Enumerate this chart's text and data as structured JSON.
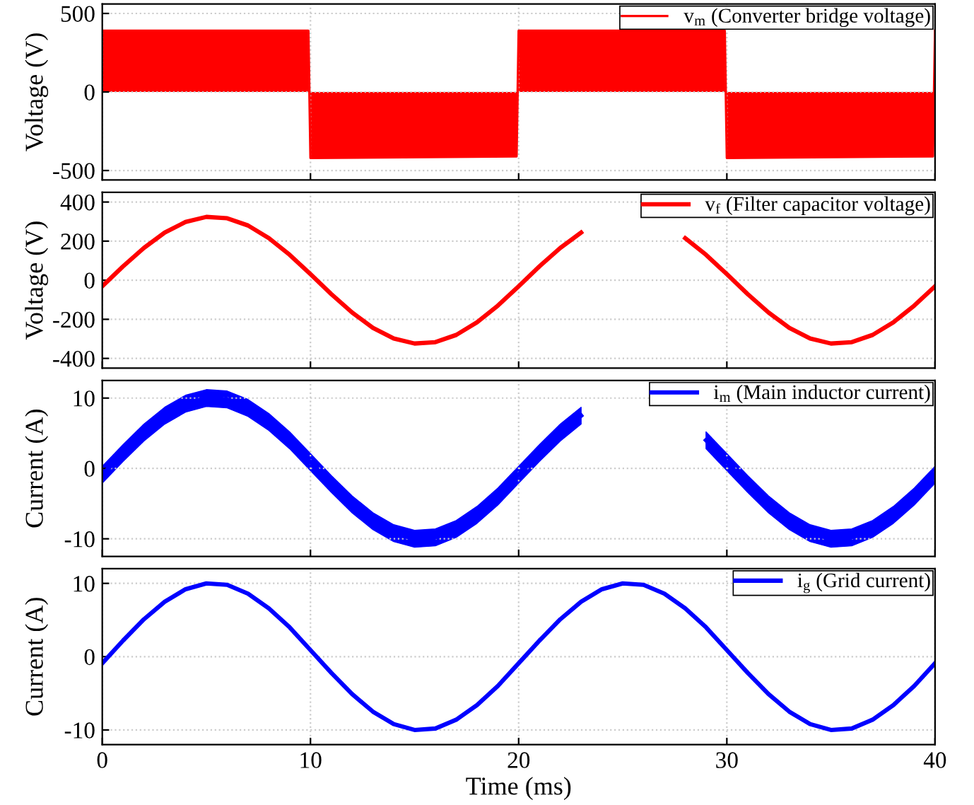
{
  "chart_data": [
    {
      "type": "area",
      "ylabel": "Voltage (V)",
      "xlim": [
        0,
        40
      ],
      "xticks": [
        0,
        10,
        20,
        30,
        40
      ],
      "ylim": [
        -560,
        560
      ],
      "yticks": [
        -500,
        0,
        500
      ],
      "grid": true,
      "legend": "top right",
      "tick_labels": "y",
      "series": [
        {
          "name": "v$_{m}$ (Converter bridge voltage)",
          "color": "#ff0000",
          "x": [
            0,
            9.9,
            10,
            19.9,
            20,
            29.9,
            30,
            39.9,
            40
          ],
          "values": [
            390,
            390,
            -420,
            -410,
            390,
            390,
            -420,
            -410,
            390
          ]
        }
      ]
    },
    {
      "type": "line",
      "ylabel": "Voltage (V)",
      "xlim": [
        0,
        40
      ],
      "xticks": [
        0,
        10,
        20,
        30,
        40
      ],
      "ylim": [
        -450,
        450
      ],
      "yticks": [
        -400,
        -200,
        0,
        200,
        400
      ],
      "grid": true,
      "legend": "top right",
      "tick_labels": "y",
      "series": [
        {
          "name": "v$_{f}$ (Filter capacitor voltage)",
          "color": "#ff0000",
          "x": [
            0,
            1,
            2,
            3,
            4,
            5,
            6,
            7,
            8,
            9,
            10,
            11,
            12,
            13,
            14,
            15,
            16,
            17,
            18,
            19,
            20,
            21,
            22,
            23,
            24,
            25,
            26,
            27,
            28,
            29,
            30,
            31,
            32,
            33,
            34,
            35,
            36,
            37,
            38,
            39,
            40
          ],
          "values": [
            -31,
            71,
            165,
            244,
            298,
            324,
            317,
            280,
            215,
            130,
            31,
            -71,
            -165,
            -244,
            -298,
            -324,
            -317,
            -280,
            -215,
            -130,
            -31,
            71,
            165,
            244,
            null,
            null,
            null,
            null,
            215,
            130,
            31,
            -71,
            -165,
            -244,
            -298,
            -324,
            -317,
            -280,
            -215,
            -130,
            -31
          ]
        }
      ]
    },
    {
      "type": "line",
      "ylabel": "Current (A)",
      "xlim": [
        0,
        40
      ],
      "xticks": [
        0,
        10,
        20,
        30,
        40
      ],
      "ylim": [
        -12.5,
        12.5
      ],
      "yticks": [
        -10,
        0,
        10
      ],
      "grid": true,
      "legend": "top right",
      "tick_labels": "y",
      "series": [
        {
          "name": "i$_{m}$ (Main inductor current)",
          "color": "#0000ff",
          "x": [
            0,
            1,
            2,
            3,
            4,
            5,
            6,
            7,
            8,
            9,
            10,
            11,
            12,
            13,
            14,
            15,
            16,
            17,
            18,
            19,
            20,
            21,
            22,
            23,
            24,
            25,
            26,
            27,
            28,
            29,
            30,
            31,
            32,
            33,
            34,
            35,
            36,
            37,
            38,
            39,
            40
          ],
          "values": [
            -0.9,
            2.2,
            5.1,
            7.5,
            9.2,
            10.0,
            9.8,
            8.6,
            6.6,
            4.0,
            0.9,
            -2.2,
            -5.1,
            -7.5,
            -9.2,
            -10.0,
            -9.8,
            -8.6,
            -6.6,
            -4.0,
            -0.9,
            2.2,
            5.1,
            7.5,
            null,
            null,
            null,
            null,
            null,
            4.0,
            0.9,
            -2.2,
            -5.1,
            -7.5,
            -9.2,
            -10.0,
            -9.8,
            -8.6,
            -6.6,
            -4.0,
            -0.9
          ],
          "lower": [
            -2.1,
            1.0,
            3.9,
            6.3,
            8.0,
            8.8,
            8.6,
            7.4,
            5.4,
            2.8,
            -0.3,
            -3.4,
            -6.3,
            -8.7,
            -10.4,
            -11.2,
            -11.0,
            -9.8,
            -7.8,
            -5.2,
            -2.1,
            1.0,
            3.9,
            6.3,
            null,
            null,
            null,
            null,
            null,
            2.8,
            -0.3,
            -3.4,
            -6.3,
            -8.7,
            -10.4,
            -11.2,
            -11.0,
            -9.8,
            -7.8,
            -5.2,
            -2.1
          ],
          "upper": [
            0.3,
            3.4,
            6.3,
            8.7,
            10.4,
            11.2,
            11.0,
            9.8,
            7.8,
            5.2,
            2.1,
            -1.0,
            -3.9,
            -6.3,
            -8.0,
            -8.8,
            -8.6,
            -7.4,
            -5.4,
            -2.8,
            0.3,
            3.4,
            6.3,
            8.7,
            null,
            null,
            null,
            null,
            null,
            5.2,
            2.1,
            -1.0,
            -3.9,
            -6.3,
            -8.0,
            -8.8,
            -8.6,
            -7.4,
            -5.4,
            -2.8,
            0.3
          ]
        }
      ]
    },
    {
      "type": "line",
      "xlabel": "Time (ms)",
      "ylabel": "Current (A)",
      "xlim": [
        0,
        40
      ],
      "xticks": [
        0,
        10,
        20,
        30,
        40
      ],
      "ylim": [
        -12,
        12
      ],
      "yticks": [
        -10,
        0,
        10
      ],
      "grid": true,
      "legend": "top right",
      "series": [
        {
          "name": "i$_{g}$ (Grid current)",
          "color": "#0000ff",
          "x": [
            0,
            1,
            2,
            3,
            4,
            5,
            6,
            7,
            8,
            9,
            10,
            11,
            12,
            13,
            14,
            15,
            16,
            17,
            18,
            19,
            20,
            21,
            22,
            23,
            24,
            25,
            26,
            27,
            28,
            29,
            30,
            31,
            32,
            33,
            34,
            35,
            36,
            37,
            38,
            39,
            40
          ],
          "values": [
            -0.9,
            2.2,
            5.1,
            7.5,
            9.2,
            10.0,
            9.8,
            8.6,
            6.6,
            4.0,
            0.9,
            -2.2,
            -5.1,
            -7.5,
            -9.2,
            -10.0,
            -9.8,
            -8.6,
            -6.6,
            -4.0,
            -0.9,
            2.2,
            5.1,
            7.5,
            9.2,
            10.0,
            9.8,
            8.6,
            6.6,
            4.0,
            0.9,
            -2.2,
            -5.1,
            -7.5,
            -9.2,
            -10.0,
            -9.8,
            -8.6,
            -6.6,
            -4.0,
            -0.9
          ]
        }
      ]
    }
  ]
}
